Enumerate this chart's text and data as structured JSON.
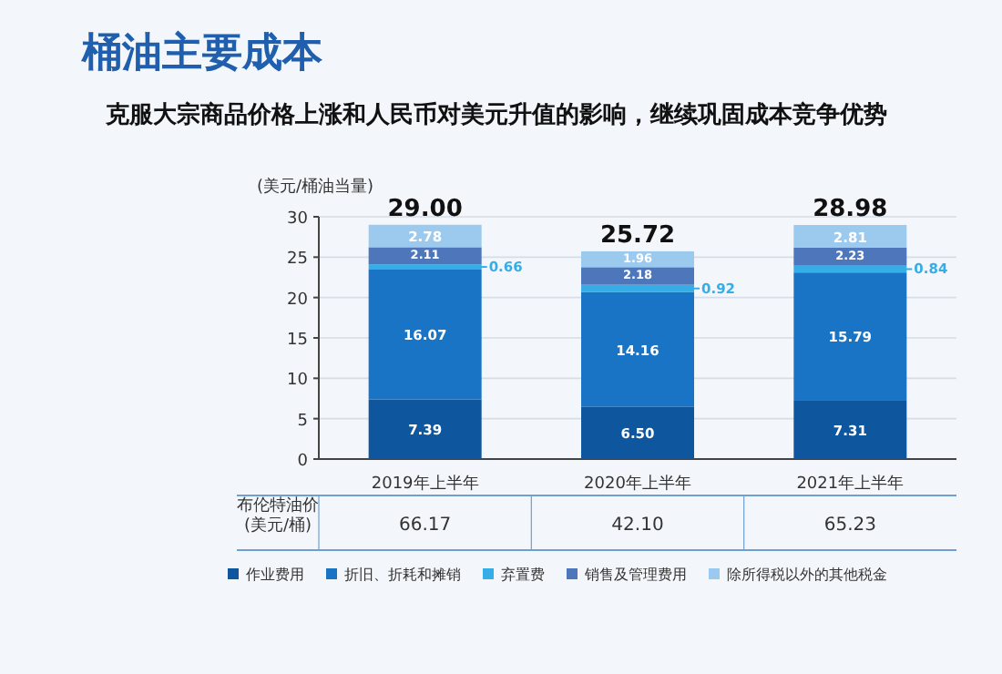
{
  "chart_data": {
    "type": "bar",
    "stacked": true,
    "title": "桶油主要成本",
    "subtitle": "克服大宗商品价格上涨和人民币对美元升值的影响，继续巩固成本竞争优势",
    "ylabel": "(美元/桶油当量)",
    "categories": [
      "2019年上半年",
      "2020年上半年",
      "2021年上半年"
    ],
    "series": [
      {
        "name": "作业费用",
        "color": "#0e569e",
        "values": [
          7.39,
          6.5,
          7.31
        ],
        "value_labels": [
          "7.39",
          "6.50",
          "7.31"
        ]
      },
      {
        "name": "折旧、折耗和摊销",
        "color": "#1a74c6",
        "values": [
          16.07,
          14.16,
          15.79
        ]
      },
      {
        "name": "弃置费",
        "color": "#35aee8",
        "values": [
          0.66,
          0.92,
          0.84
        ]
      },
      {
        "name": "销售及管理费用",
        "color": "#4d76bb",
        "values": [
          2.11,
          2.18,
          2.23
        ]
      },
      {
        "name": "除所得税以外的其他税金",
        "color": "#9ccaee",
        "values": [
          2.78,
          1.96,
          2.81
        ]
      }
    ],
    "ylim": [
      0,
      30
    ],
    "yticks": [
      0,
      5,
      10,
      15,
      20,
      25,
      30
    ],
    "grid": "y",
    "legend": "bottom",
    "data_labels": true,
    "totals": [
      "29.00",
      "25.72",
      "28.98"
    ],
    "annotations": [
      "布伦特油价\n(美元/桶)",
      "66.17",
      "42.10",
      "65.23"
    ]
  }
}
